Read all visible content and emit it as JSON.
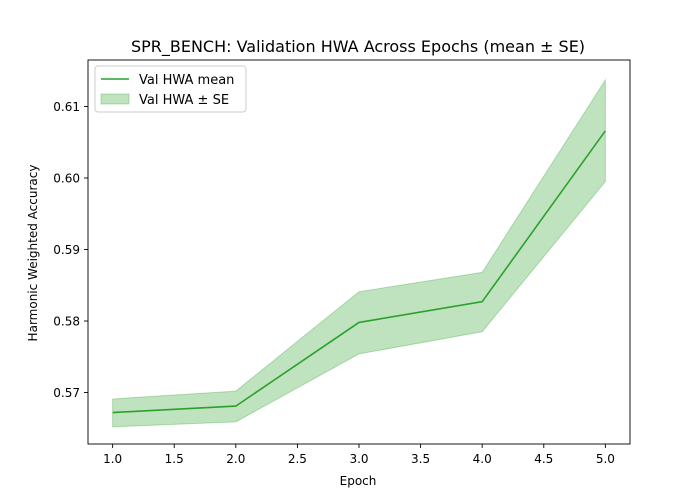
{
  "chart_data": {
    "type": "line",
    "title": "SPR_BENCH: Validation HWA Across Epochs (mean ± SE)",
    "xlabel": "Epoch",
    "ylabel": "Harmonic Weighted Accuracy",
    "xlim": [
      0.8,
      5.2
    ],
    "ylim": [
      0.5628,
      0.6165
    ],
    "xticks": [
      "1.0",
      "1.5",
      "2.0",
      "2.5",
      "3.0",
      "3.5",
      "4.0",
      "4.5",
      "5.0"
    ],
    "yticks": [
      "0.57",
      "0.58",
      "0.59",
      "0.60",
      "0.61"
    ],
    "x": [
      1,
      2,
      3,
      4,
      5
    ],
    "series": [
      {
        "name": "Val HWA mean",
        "values": [
          0.5672,
          0.5681,
          0.5798,
          0.5827,
          0.6066
        ],
        "color": "#2ca02c"
      }
    ],
    "band": {
      "name": "Val HWA ± SE",
      "lower": [
        0.5652,
        0.5659,
        0.5754,
        0.5785,
        0.5995
      ],
      "upper": [
        0.5691,
        0.5702,
        0.5841,
        0.5868,
        0.6137
      ],
      "color": "#2ca02c",
      "opacity": 0.3
    },
    "legend": {
      "position": "upper-left"
    },
    "grid": false
  }
}
